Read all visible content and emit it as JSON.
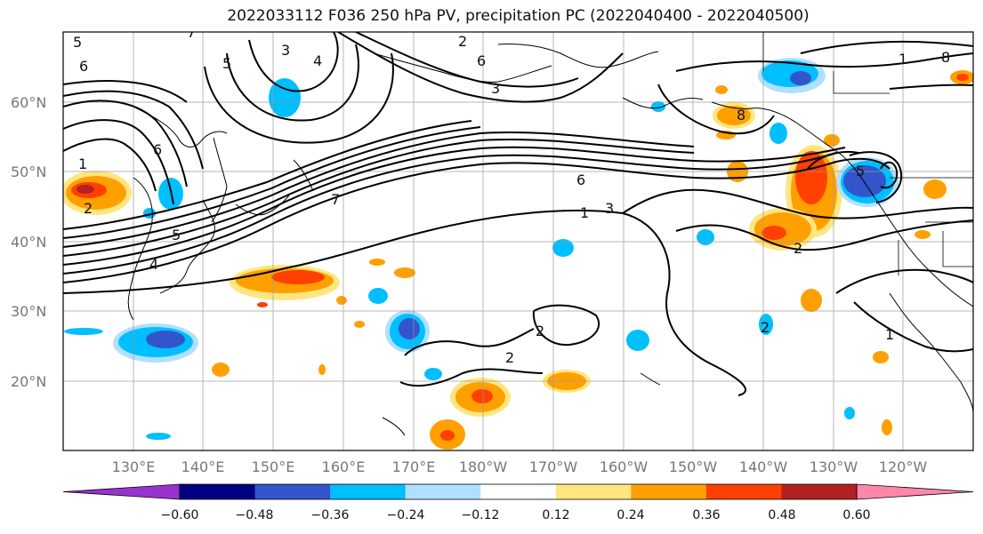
{
  "title": "2022033112 F036 250 hPa PV, precipitation PC (2022040400 - 2022040500)",
  "lat_labels": [
    "60°N",
    "50°N",
    "40°N",
    "30°N",
    "20°N"
  ],
  "lon_labels": [
    "130°E",
    "140°E",
    "150°E",
    "160°E",
    "170°E",
    "180°W",
    "170°W",
    "160°W",
    "150°W",
    "140°W",
    "130°W",
    "120°W"
  ],
  "colorbar": {
    "tick_labels": [
      "−0.60",
      "−0.48",
      "−0.36",
      "−0.24",
      "−0.12",
      "0.12",
      "0.24",
      "0.36",
      "0.48",
      "0.60"
    ],
    "colors": [
      "#9933cc",
      "#000080",
      "#3355cc",
      "#00bfff",
      "#b0e0ff",
      "#ffffff",
      "#ffe680",
      "#ffa000",
      "#ff4000",
      "#b22222",
      "#ff88aa"
    ]
  },
  "pv_contour_labels": [
    "6",
    "5",
    "3",
    "4",
    "2",
    "1",
    "6",
    "5",
    "7",
    "1",
    "2",
    "3",
    "4",
    "5",
    "6",
    "7",
    "1",
    "2",
    "3",
    "6",
    "8",
    "8",
    "2",
    "1",
    "2",
    "2",
    "5"
  ]
}
